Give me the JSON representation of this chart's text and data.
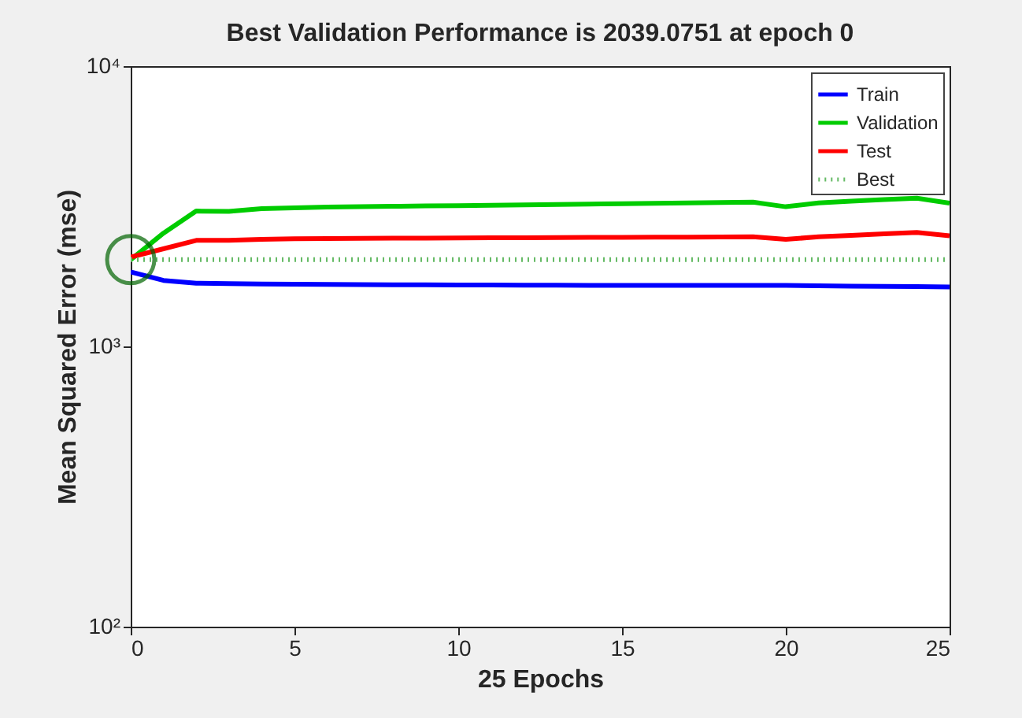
{
  "chart_data": {
    "type": "line",
    "title": "Best Validation Performance is 2039.0751 at epoch 0",
    "xlabel": "25 Epochs",
    "ylabel": "Mean Squared Error  (mse)",
    "series": [
      {
        "name": "Train",
        "color": "#0000ff",
        "x": [
          0,
          1,
          2,
          3,
          4,
          5,
          6,
          7,
          8,
          9,
          10,
          11,
          12,
          13,
          14,
          15,
          16,
          17,
          18,
          19,
          20,
          21,
          22,
          23,
          24,
          25
        ],
        "values": [
          1845,
          1720,
          1680,
          1675,
          1670,
          1668,
          1665,
          1662,
          1660,
          1658,
          1655,
          1655,
          1654,
          1653,
          1652,
          1652,
          1651,
          1651,
          1650,
          1650,
          1650,
          1645,
          1640,
          1638,
          1635,
          1630
        ]
      },
      {
        "name": "Validation",
        "color": "#00cc00",
        "x": [
          0,
          1,
          2,
          3,
          4,
          5,
          6,
          7,
          8,
          9,
          10,
          11,
          12,
          13,
          14,
          15,
          16,
          17,
          18,
          19,
          20,
          21,
          22,
          23,
          24,
          25
        ],
        "values": [
          2039,
          2535,
          3040,
          3030,
          3100,
          3120,
          3140,
          3150,
          3160,
          3170,
          3180,
          3190,
          3200,
          3210,
          3220,
          3230,
          3240,
          3250,
          3260,
          3270,
          3150,
          3250,
          3300,
          3340,
          3380,
          3245
        ]
      },
      {
        "name": "Test",
        "color": "#ff0000",
        "x": [
          0,
          1,
          2,
          3,
          4,
          5,
          6,
          7,
          8,
          9,
          10,
          11,
          12,
          13,
          14,
          15,
          16,
          17,
          18,
          19,
          20,
          21,
          22,
          23,
          24,
          25
        ],
        "values": [
          2082,
          2230,
          2390,
          2390,
          2410,
          2420,
          2425,
          2430,
          2432,
          2435,
          2438,
          2440,
          2442,
          2445,
          2448,
          2450,
          2452,
          2455,
          2458,
          2460,
          2410,
          2460,
          2490,
          2520,
          2550,
          2480
        ]
      },
      {
        "name": "Best",
        "color": "#66bb66",
        "line_style": "dotted",
        "x": [
          0,
          25
        ],
        "values": [
          2039.0751,
          2039.0751
        ]
      },
      {
        "type": "scatter",
        "marker": "circle",
        "color": "#006400",
        "x": [
          0
        ],
        "values": [
          2039.0751
        ]
      }
    ],
    "xlim": [
      0,
      25
    ],
    "xticks": [
      0,
      5,
      10,
      15,
      20,
      25
    ],
    "log": true,
    "ylim": [
      100,
      10000
    ],
    "yticks": [
      {
        "value": 100,
        "label": "10²"
      },
      {
        "value": 1000,
        "label": "10³"
      },
      {
        "value": 10000,
        "label": "10⁴"
      }
    ],
    "grid": false,
    "legend": "top right"
  }
}
